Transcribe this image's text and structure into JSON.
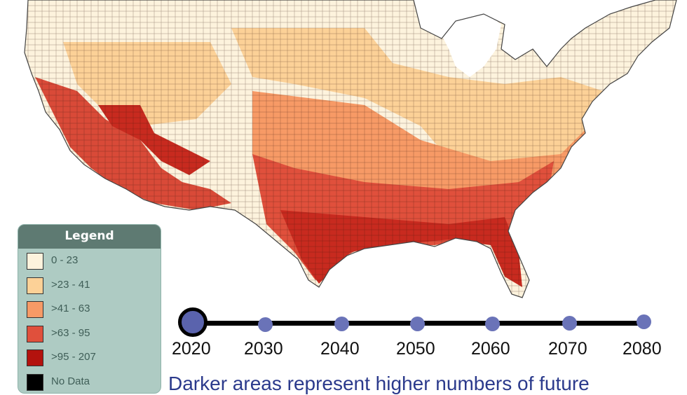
{
  "legend": {
    "title": "Legend",
    "items": [
      {
        "label": "0 - 23",
        "color": "#fdf3dd"
      },
      {
        "label": ">23 - 41",
        "color": "#fcd197"
      },
      {
        "label": ">41 - 63",
        "color": "#f79a66"
      },
      {
        "label": ">63 - 95",
        "color": "#e0503c"
      },
      {
        "label": ">95 - 207",
        "color": "#b3120d"
      },
      {
        "label": "No Data",
        "color": "#000000"
      }
    ]
  },
  "timeline": {
    "years": [
      "2020",
      "2030",
      "2040",
      "2050",
      "2060",
      "2070",
      "2080"
    ],
    "selected": "2020"
  },
  "caption": "Darker areas represent higher numbers of future",
  "colors": {
    "line": "#000000",
    "dot": "#6a73b8",
    "caption": "#2b3a8c",
    "county_border": "#3a1a10"
  }
}
